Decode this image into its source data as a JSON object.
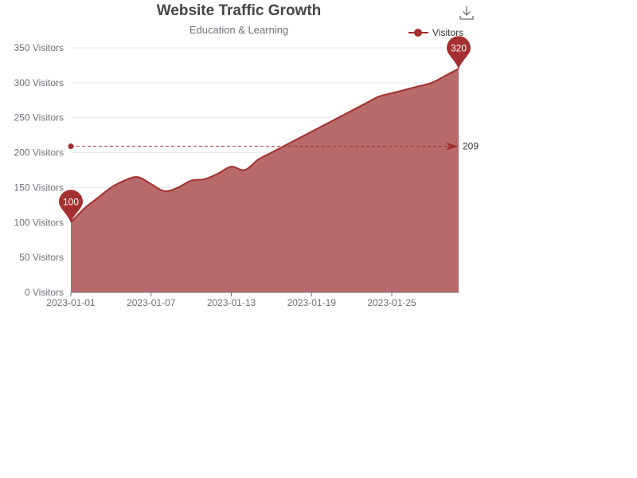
{
  "toolbox": {
    "save_icon": "download-icon"
  },
  "chart_data": {
    "type": "area",
    "title": "Website Traffic Growth",
    "subtitle": "Education & Learning",
    "xlabel": "",
    "ylabel": "",
    "y_unit_suffix": " Visitors",
    "ylim": [
      0,
      350
    ],
    "y_ticks": [
      0,
      50,
      100,
      150,
      200,
      250,
      300,
      350
    ],
    "x_tick_labels": [
      "2023-01-01",
      "2023-01-07",
      "2023-01-13",
      "2023-01-19",
      "2023-01-25"
    ],
    "legend": {
      "position": "top-right",
      "entries": [
        "Visitors"
      ]
    },
    "grid": true,
    "colors": {
      "series": "#a3302f",
      "area": "#b76a69",
      "grid": "#e0e6f1",
      "axis": "#6e7079"
    },
    "categories": [
      "2023-01-01",
      "2023-01-02",
      "2023-01-03",
      "2023-01-04",
      "2023-01-05",
      "2023-01-06",
      "2023-01-07",
      "2023-01-08",
      "2023-01-09",
      "2023-01-10",
      "2023-01-11",
      "2023-01-12",
      "2023-01-13",
      "2023-01-14",
      "2023-01-15",
      "2023-01-16",
      "2023-01-17",
      "2023-01-18",
      "2023-01-19",
      "2023-01-20",
      "2023-01-21",
      "2023-01-22",
      "2023-01-23",
      "2023-01-24",
      "2023-01-25",
      "2023-01-26",
      "2023-01-27",
      "2023-01-28",
      "2023-01-29",
      "2023-01-30"
    ],
    "series": [
      {
        "name": "Visitors",
        "values": [
          100,
          120,
          135,
          150,
          160,
          165,
          155,
          145,
          150,
          160,
          162,
          170,
          180,
          175,
          190,
          200,
          210,
          220,
          230,
          240,
          250,
          260,
          270,
          280,
          285,
          290,
          295,
          300,
          310,
          320
        ]
      }
    ],
    "mark_points": [
      {
        "type": "min",
        "label": "100",
        "value": 100,
        "category": "2023-01-01"
      },
      {
        "type": "max",
        "label": "320",
        "value": 320,
        "category": "2023-01-30"
      }
    ],
    "mark_line": {
      "type": "average",
      "value": 209,
      "label": "209"
    }
  }
}
